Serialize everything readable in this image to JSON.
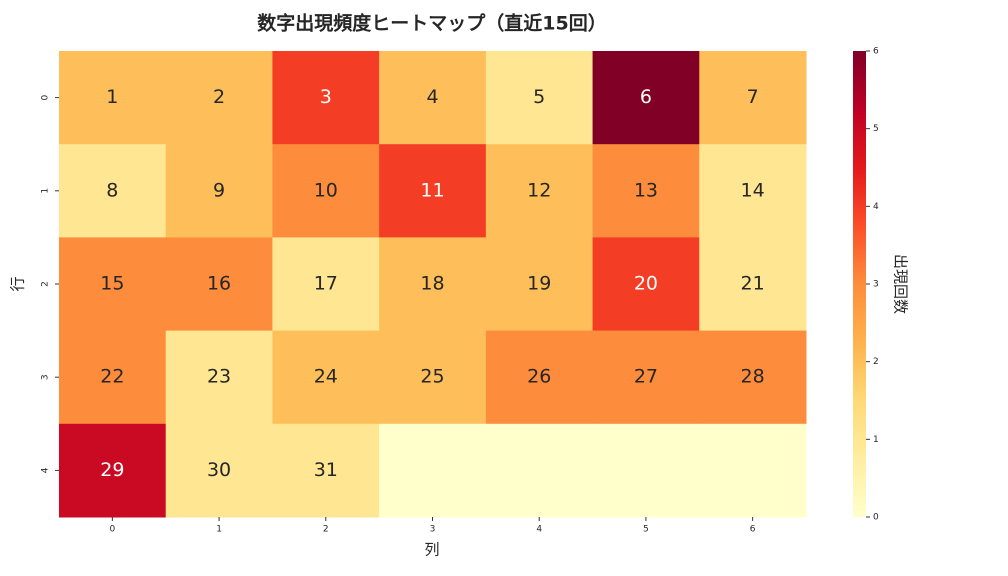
{
  "chart_data": {
    "type": "heatmap",
    "title": "数字出現頻度ヒートマップ（直近15回）",
    "x_label": "列",
    "y_label": "行",
    "x_categories": [
      0,
      1,
      2,
      3,
      4,
      5,
      6
    ],
    "y_categories": [
      0,
      1,
      2,
      3,
      4
    ],
    "z": [
      [
        2,
        2,
        4,
        2,
        1,
        6,
        2
      ],
      [
        1,
        2,
        3,
        4,
        2,
        3,
        1
      ],
      [
        3,
        3,
        1,
        2,
        2,
        4,
        1
      ],
      [
        3,
        1,
        2,
        2,
        3,
        3,
        3
      ],
      [
        5,
        1,
        1,
        0,
        0,
        0,
        0
      ]
    ],
    "cell_labels": [
      [
        1,
        2,
        3,
        4,
        5,
        6,
        7
      ],
      [
        8,
        9,
        10,
        11,
        12,
        13,
        14
      ],
      [
        15,
        16,
        17,
        18,
        19,
        20,
        21
      ],
      [
        22,
        23,
        24,
        25,
        26,
        27,
        28
      ],
      [
        29,
        30,
        31,
        null,
        null,
        null,
        null
      ]
    ],
    "colormap": "YlOrRd",
    "zlim": [
      0,
      6
    ],
    "zticks": [
      0,
      1,
      2,
      3,
      4,
      5,
      6
    ],
    "colorbar_label": "出現回数"
  }
}
